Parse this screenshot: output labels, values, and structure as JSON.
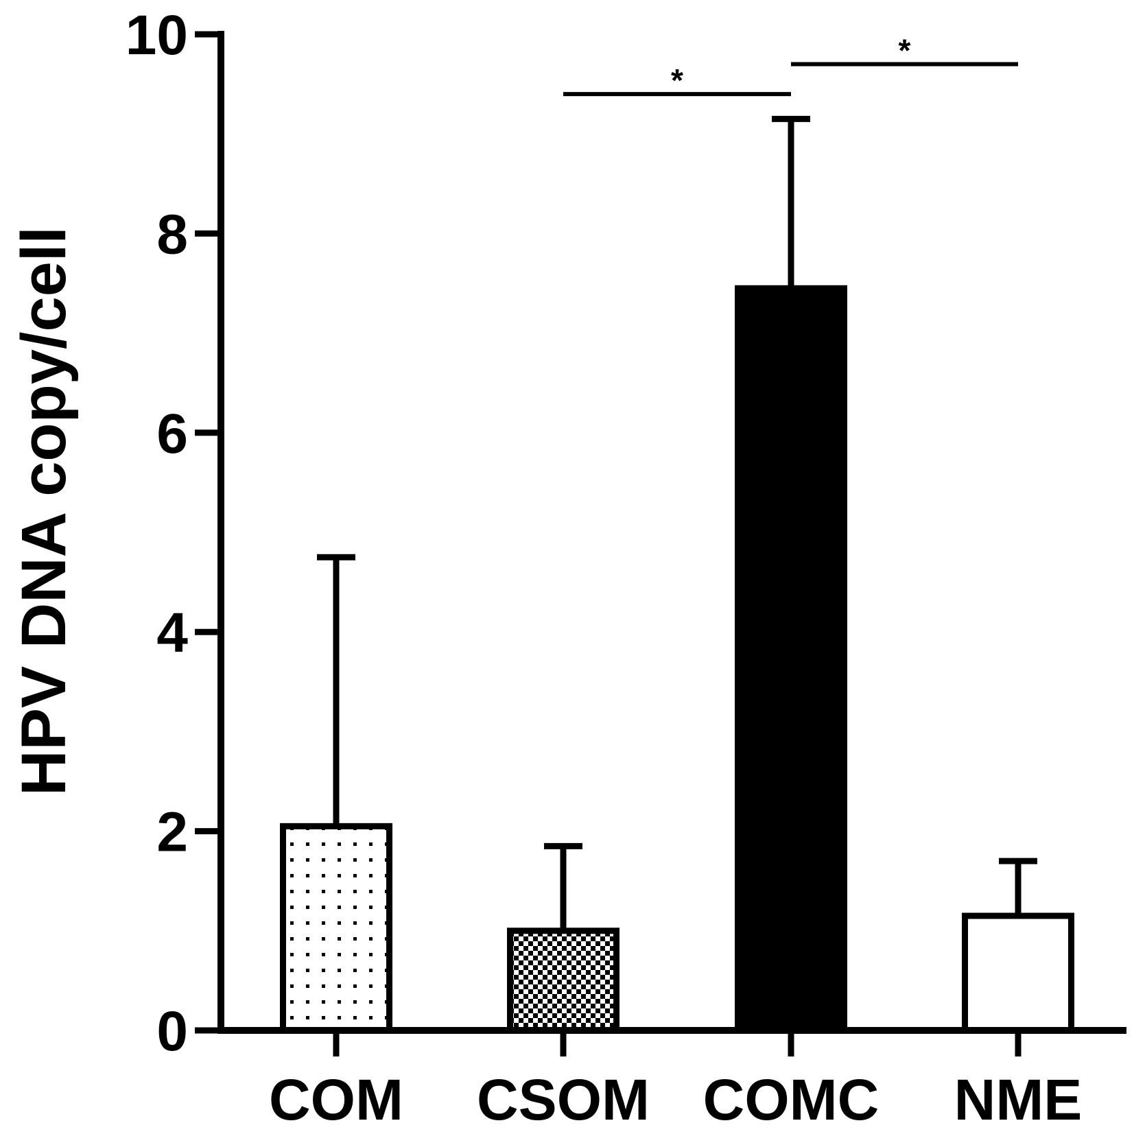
{
  "chart_data": {
    "type": "bar",
    "ylabel": "HPV DNA copy/cell",
    "xlabel": "",
    "ylim": [
      0,
      10
    ],
    "yticks": [
      "0",
      "2",
      "4",
      "6",
      "8",
      "10"
    ],
    "categories": [
      "COM",
      "CSOM",
      "COMC",
      "NME"
    ],
    "values": [
      2.05,
      1.0,
      7.45,
      1.15
    ],
    "error_upper": [
      4.75,
      1.85,
      9.15,
      1.7
    ],
    "fills": [
      "dots",
      "checker",
      "solid",
      "empty"
    ],
    "significance": [
      {
        "from": "CSOM",
        "to": "COMC",
        "label": "*"
      },
      {
        "from": "COMC",
        "to": "NME",
        "label": "*"
      }
    ]
  },
  "colors": {
    "ink": "#000000",
    "background": "#ffffff"
  }
}
